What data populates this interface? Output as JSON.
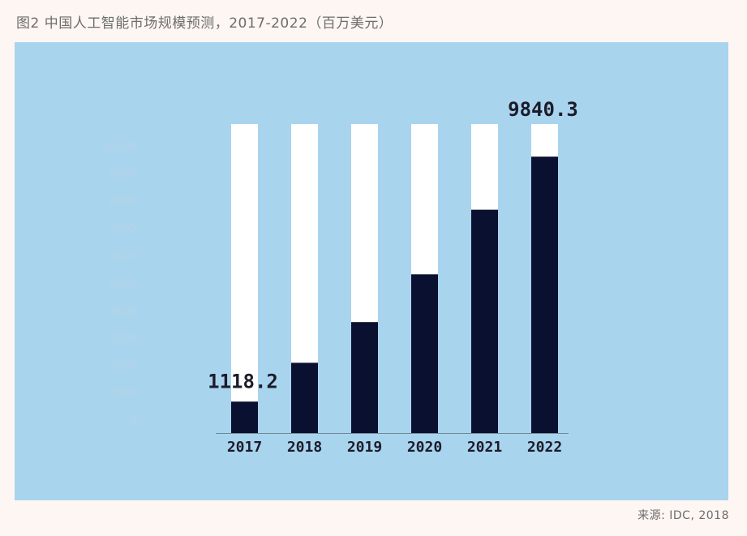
{
  "figure_title": "图2 中国人工智能市场规模预测，2017-2022（百万美元）",
  "source_note": "来源: IDC, 2018",
  "colors": {
    "page_background": "#fdf6f3",
    "panel_background": "#a9d4ee",
    "bar_fill": "#0a1030",
    "bar_track": "#ffffff",
    "y_tick_text": "#b6d3e6",
    "x_tick_text": "#1c1c2a"
  },
  "chart_data": {
    "type": "bar",
    "title": "",
    "xlabel": "",
    "ylabel": "",
    "categories": [
      "2017",
      "2018",
      "2019",
      "2020",
      "2021",
      "2022"
    ],
    "values": [
      1118.2,
      2500,
      3950,
      5650,
      7950,
      9840.3
    ],
    "data_labels": [
      "1118.2",
      "",
      "",
      "",
      "",
      "9840.3"
    ],
    "ylim": [
      0,
      11000
    ],
    "yticks": [
      0,
      1000,
      2000,
      3000,
      4000,
      5000,
      6000,
      7000,
      8000,
      9000,
      10000
    ],
    "grid": false,
    "legend": "none"
  }
}
